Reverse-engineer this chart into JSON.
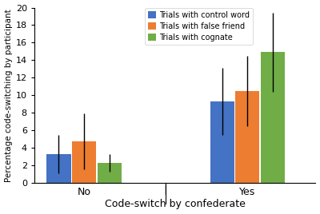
{
  "groups": [
    "No",
    "Yes"
  ],
  "series": [
    "Trials with control word",
    "Trials with false friend",
    "Trials with cognate"
  ],
  "colors": [
    "#4472C4",
    "#ED7D31",
    "#70AD47"
  ],
  "values": {
    "No": [
      3.3,
      4.7,
      2.3
    ],
    "Yes": [
      9.3,
      10.5,
      14.9
    ]
  },
  "errors": {
    "No": [
      2.2,
      3.2,
      1.0
    ],
    "Yes": [
      3.8,
      4.0,
      4.5
    ]
  },
  "ylabel": "Percentage code-switching by participant",
  "xlabel": "Code-switch by confederate",
  "ylim": [
    0,
    20
  ],
  "yticks": [
    0,
    2,
    4,
    6,
    8,
    10,
    12,
    14,
    16,
    18,
    20
  ],
  "bar_width": 0.28,
  "group_centers": [
    1.0,
    2.8
  ],
  "divider_x": 1.9,
  "xlim": [
    0.45,
    3.55
  ]
}
